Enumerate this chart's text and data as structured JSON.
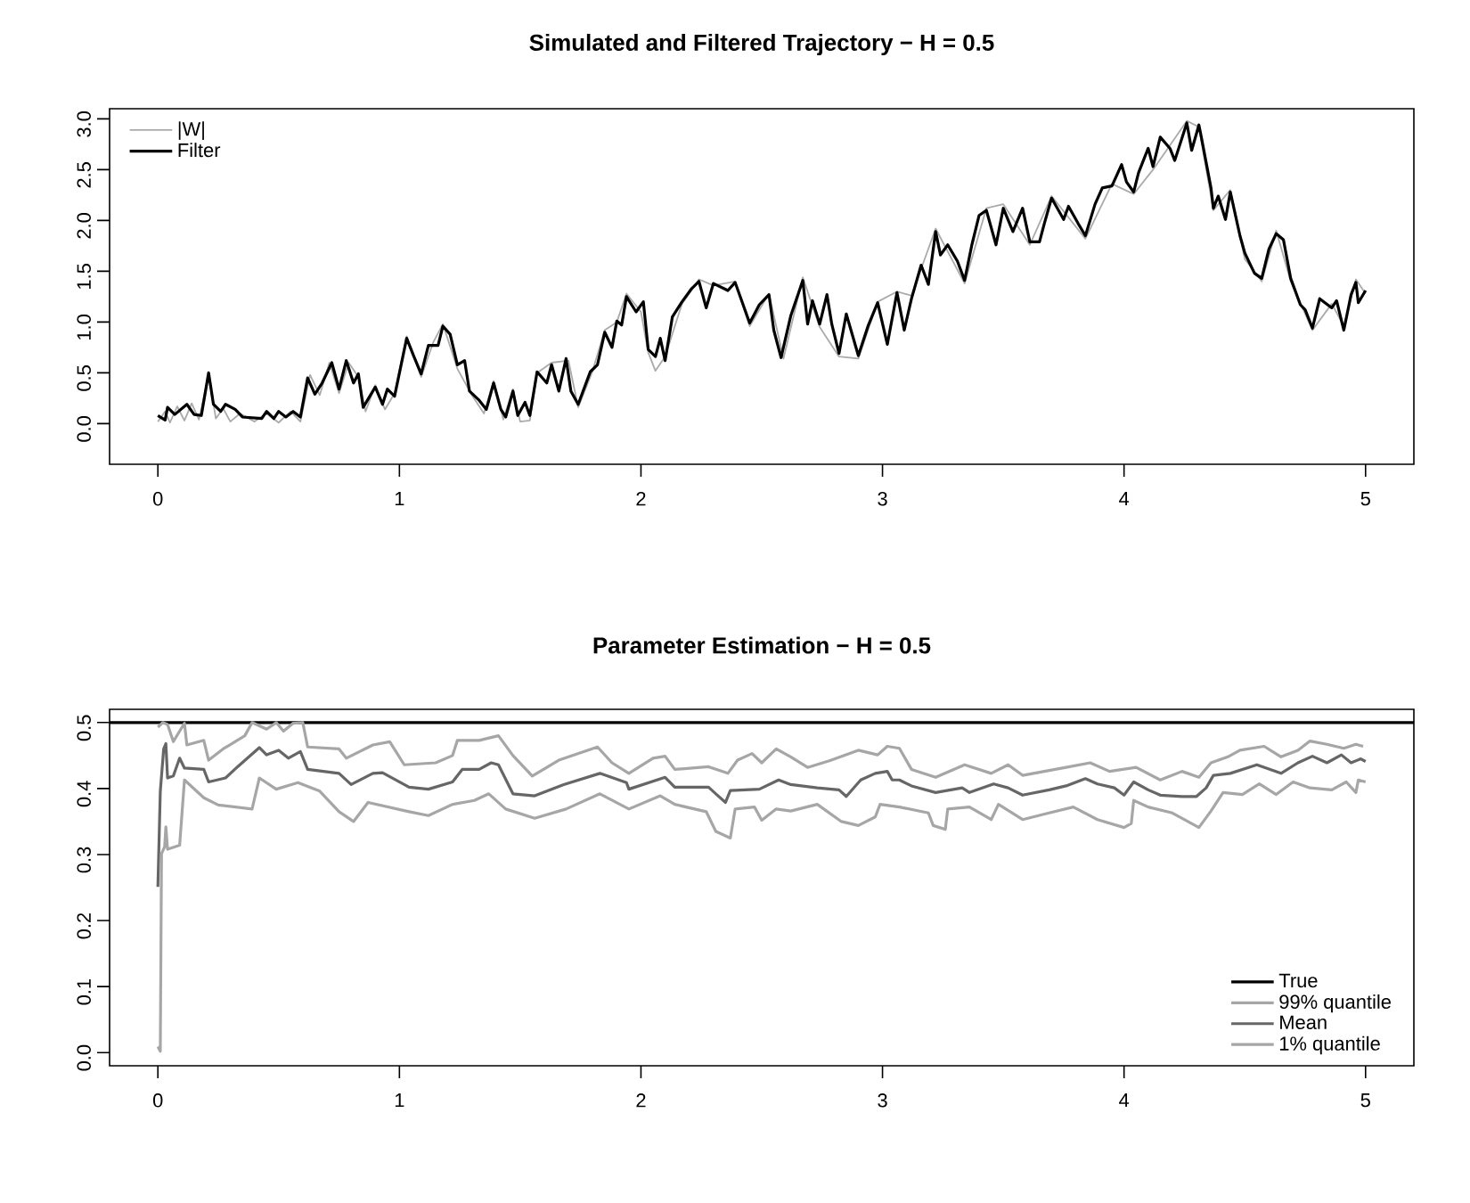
{
  "chart_data": [
    {
      "type": "line",
      "title": "Simulated and Filtered Trajectory − H = 0.5",
      "xlim": [
        -0.2,
        5.2
      ],
      "ylim": [
        -0.4,
        3.1
      ],
      "xticks": [
        0,
        1,
        2,
        3,
        4,
        5
      ],
      "yticks": [
        {
          "value": 0,
          "label": "0.0"
        },
        0.5,
        {
          "value": 1,
          "label": "1.0"
        },
        1.5,
        {
          "value": 2,
          "label": "2.0"
        },
        2.5,
        {
          "value": 3,
          "label": "3.0"
        }
      ],
      "legend": "top left",
      "series": [
        {
          "name": "|W|",
          "color": "#aaaaaa",
          "x": [
            0,
            0.03,
            0.05,
            0.08,
            0.11,
            0.14,
            0.17,
            0.21,
            0.24,
            0.27,
            0.3,
            0.34,
            0.4,
            0.45,
            0.5,
            0.55,
            0.59,
            0.63,
            0.67,
            0.71,
            0.75,
            0.79,
            0.83,
            0.86,
            0.9,
            0.94,
            0.98,
            1.03,
            1.09,
            1.14,
            1.18,
            1.24,
            1.3,
            1.35,
            1.39,
            1.43,
            1.47,
            1.5,
            1.54,
            1.57,
            1.63,
            1.7,
            1.74,
            1.8,
            1.85,
            1.9,
            1.94,
            2.0,
            2.03,
            2.06,
            2.1,
            2.17,
            2.24,
            2.3,
            2.39,
            2.45,
            2.53,
            2.59,
            2.67,
            2.74,
            2.82,
            2.9,
            2.98,
            3.06,
            3.12,
            3.22,
            3.34,
            3.43,
            3.5,
            3.61,
            3.7,
            3.84,
            3.95,
            4.04,
            4.12,
            4.19,
            4.26,
            4.31,
            4.37,
            4.44,
            4.5,
            4.57,
            4.63,
            4.69,
            4.78,
            4.86,
            4.91,
            4.96,
            5.0
          ],
          "values": [
            0.02,
            0.12,
            0.01,
            0.17,
            0.03,
            0.2,
            0.04,
            0.48,
            0.05,
            0.15,
            0.02,
            0.1,
            0.02,
            0.1,
            0.01,
            0.12,
            0.02,
            0.48,
            0.28,
            0.6,
            0.3,
            0.6,
            0.46,
            0.12,
            0.38,
            0.14,
            0.3,
            0.86,
            0.46,
            0.8,
            0.98,
            0.54,
            0.28,
            0.1,
            0.42,
            0.04,
            0.34,
            0.02,
            0.03,
            0.5,
            0.6,
            0.62,
            0.16,
            0.52,
            0.92,
            1.0,
            1.28,
            1.1,
            0.7,
            0.52,
            0.66,
            1.18,
            1.42,
            1.36,
            1.4,
            0.96,
            1.28,
            0.64,
            1.44,
            0.95,
            0.66,
            0.64,
            1.2,
            1.3,
            1.26,
            1.92,
            1.38,
            2.12,
            2.16,
            1.76,
            2.24,
            1.82,
            2.36,
            2.26,
            2.5,
            2.74,
            2.98,
            2.92,
            2.1,
            2.3,
            1.62,
            1.4,
            1.9,
            1.4,
            0.92,
            1.18,
            0.96,
            1.42,
            1.28
          ]
        },
        {
          "name": "Filter",
          "color": "#000000",
          "x": [
            0,
            0.03,
            0.04,
            0.07,
            0.12,
            0.15,
            0.18,
            0.21,
            0.23,
            0.26,
            0.28,
            0.32,
            0.35,
            0.43,
            0.45,
            0.48,
            0.5,
            0.53,
            0.56,
            0.59,
            0.62,
            0.65,
            0.68,
            0.72,
            0.75,
            0.78,
            0.81,
            0.83,
            0.85,
            0.9,
            0.93,
            0.95,
            0.98,
            1.03,
            1.06,
            1.09,
            1.12,
            1.16,
            1.18,
            1.21,
            1.24,
            1.27,
            1.29,
            1.33,
            1.36,
            1.39,
            1.42,
            1.44,
            1.47,
            1.49,
            1.52,
            1.54,
            1.57,
            1.61,
            1.63,
            1.66,
            1.69,
            1.71,
            1.74,
            1.79,
            1.82,
            1.85,
            1.88,
            1.9,
            1.92,
            1.94,
            1.98,
            2.01,
            2.03,
            2.06,
            2.08,
            2.1,
            2.13,
            2.17,
            2.21,
            2.24,
            2.27,
            2.3,
            2.36,
            2.39,
            2.45,
            2.49,
            2.53,
            2.55,
            2.58,
            2.62,
            2.67,
            2.69,
            2.71,
            2.74,
            2.77,
            2.79,
            2.82,
            2.85,
            2.9,
            2.94,
            2.98,
            3.02,
            3.06,
            3.09,
            3.12,
            3.16,
            3.19,
            3.22,
            3.24,
            3.27,
            3.31,
            3.34,
            3.37,
            3.4,
            3.43,
            3.47,
            3.5,
            3.54,
            3.58,
            3.61,
            3.65,
            3.67,
            3.7,
            3.75,
            3.77,
            3.81,
            3.84,
            3.88,
            3.91,
            3.95,
            3.99,
            4.01,
            4.04,
            4.06,
            4.1,
            4.12,
            4.15,
            4.19,
            4.21,
            4.26,
            4.28,
            4.31,
            4.32,
            4.36,
            4.37,
            4.39,
            4.42,
            4.44,
            4.48,
            4.5,
            4.54,
            4.57,
            4.6,
            4.63,
            4.66,
            4.69,
            4.73,
            4.75,
            4.78,
            4.81,
            4.86,
            4.88,
            4.91,
            4.94,
            4.96,
            4.97,
            5.0
          ],
          "values": [
            0.08,
            0.035,
            0.16,
            0.09,
            0.19,
            0.09,
            0.08,
            0.5,
            0.19,
            0.12,
            0.19,
            0.14,
            0.065,
            0.05,
            0.12,
            0.05,
            0.12,
            0.065,
            0.12,
            0.065,
            0.45,
            0.29,
            0.4,
            0.6,
            0.34,
            0.62,
            0.4,
            0.49,
            0.16,
            0.36,
            0.19,
            0.34,
            0.27,
            0.84,
            0.66,
            0.49,
            0.77,
            0.77,
            0.96,
            0.88,
            0.58,
            0.62,
            0.32,
            0.23,
            0.14,
            0.4,
            0.14,
            0.065,
            0.32,
            0.08,
            0.21,
            0.08,
            0.51,
            0.4,
            0.58,
            0.32,
            0.64,
            0.32,
            0.19,
            0.51,
            0.58,
            0.9,
            0.75,
            1.01,
            0.97,
            1.25,
            1.1,
            1.2,
            0.73,
            0.66,
            0.84,
            0.62,
            1.05,
            1.2,
            1.33,
            1.4,
            1.14,
            1.38,
            1.31,
            1.39,
            0.99,
            1.17,
            1.27,
            0.92,
            0.65,
            1.06,
            1.41,
            0.98,
            1.21,
            0.98,
            1.27,
            0.98,
            0.69,
            1.08,
            0.67,
            0.96,
            1.19,
            0.78,
            1.29,
            0.92,
            1.23,
            1.56,
            1.37,
            1.89,
            1.66,
            1.76,
            1.6,
            1.41,
            1.76,
            2.05,
            2.1,
            1.76,
            2.12,
            1.89,
            2.12,
            1.79,
            1.79,
            1.97,
            2.22,
            2.01,
            2.14,
            1.97,
            1.85,
            2.16,
            2.32,
            2.34,
            2.55,
            2.38,
            2.28,
            2.47,
            2.71,
            2.53,
            2.82,
            2.71,
            2.59,
            2.96,
            2.69,
            2.94,
            2.82,
            2.32,
            2.12,
            2.24,
            2.01,
            2.28,
            1.85,
            1.68,
            1.48,
            1.43,
            1.72,
            1.87,
            1.81,
            1.43,
            1.17,
            1.12,
            0.94,
            1.23,
            1.14,
            1.21,
            0.92,
            1.27,
            1.39,
            1.19,
            1.31
          ]
        }
      ]
    },
    {
      "type": "line",
      "title": "Parameter Estimation − H = 0.5",
      "xlim": [
        -0.2,
        5.2
      ],
      "ylim": [
        -0.02,
        0.52
      ],
      "xticks": [
        0,
        1,
        2,
        3,
        4,
        5
      ],
      "yticks": [
        {
          "value": 0,
          "label": "0.0"
        },
        0.1,
        0.2,
        0.3,
        0.4,
        0.5
      ],
      "legend": "bottom right",
      "series": [
        {
          "name": "True",
          "color": "#000000",
          "x": [
            -0.2,
            5.2
          ],
          "values": [
            0.5,
            0.5
          ]
        },
        {
          "name": "99% quantile",
          "color": "#a6a6a6",
          "x": [
            0,
            0.02,
            0.04,
            0.064,
            0.09,
            0.11,
            0.12,
            0.19,
            0.21,
            0.27,
            0.36,
            0.39,
            0.45,
            0.49,
            0.52,
            0.56,
            0.6,
            0.62,
            0.75,
            0.78,
            0.89,
            0.96,
            1.02,
            1.15,
            1.22,
            1.24,
            1.33,
            1.41,
            1.47,
            1.55,
            1.66,
            1.82,
            1.88,
            1.95,
            2.05,
            2.1,
            2.14,
            2.28,
            2.36,
            2.4,
            2.46,
            2.5,
            2.56,
            2.62,
            2.69,
            2.78,
            2.9,
            2.98,
            3.02,
            3.07,
            3.12,
            3.22,
            3.34,
            3.45,
            3.52,
            3.58,
            3.76,
            3.86,
            3.94,
            4.05,
            4.15,
            4.24,
            4.31,
            4.36,
            4.43,
            4.48,
            4.58,
            4.65,
            4.72,
            4.77,
            4.84,
            4.91,
            4.96,
            4.99
          ],
          "values": [
            0.493,
            0.5,
            0.497,
            0.471,
            0.487,
            0.499,
            0.466,
            0.473,
            0.443,
            0.46,
            0.48,
            0.5,
            0.49,
            0.5,
            0.487,
            0.499,
            0.5,
            0.463,
            0.46,
            0.446,
            0.466,
            0.471,
            0.436,
            0.439,
            0.45,
            0.473,
            0.473,
            0.48,
            0.45,
            0.419,
            0.443,
            0.463,
            0.439,
            0.423,
            0.446,
            0.449,
            0.429,
            0.433,
            0.423,
            0.443,
            0.453,
            0.439,
            0.46,
            0.448,
            0.432,
            0.442,
            0.458,
            0.451,
            0.464,
            0.461,
            0.429,
            0.417,
            0.436,
            0.423,
            0.436,
            0.42,
            0.432,
            0.439,
            0.426,
            0.432,
            0.413,
            0.426,
            0.417,
            0.439,
            0.448,
            0.458,
            0.464,
            0.448,
            0.458,
            0.472,
            0.467,
            0.461,
            0.467,
            0.464
          ]
        },
        {
          "name": "Mean",
          "color": "#666666",
          "x": [
            0,
            0.01,
            0.024,
            0.033,
            0.04,
            0.064,
            0.09,
            0.11,
            0.19,
            0.21,
            0.28,
            0.33,
            0.42,
            0.45,
            0.5,
            0.54,
            0.59,
            0.62,
            0.75,
            0.8,
            0.89,
            0.93,
            1.04,
            1.12,
            1.22,
            1.26,
            1.33,
            1.38,
            1.41,
            1.47,
            1.56,
            1.68,
            1.83,
            1.94,
            1.95,
            2.1,
            2.14,
            2.28,
            2.31,
            2.35,
            2.37,
            2.49,
            2.57,
            2.62,
            2.73,
            2.82,
            2.85,
            2.91,
            2.97,
            3.02,
            3.04,
            3.07,
            3.12,
            3.22,
            3.33,
            3.36,
            3.46,
            3.52,
            3.58,
            3.69,
            3.76,
            3.84,
            3.89,
            3.96,
            4.0,
            4.04,
            4.1,
            4.15,
            4.24,
            4.3,
            4.34,
            4.37,
            4.44,
            4.55,
            4.65,
            4.72,
            4.78,
            4.84,
            4.9,
            4.94,
            4.98,
            5.0
          ],
          "values": [
            0.251,
            0.396,
            0.46,
            0.468,
            0.416,
            0.419,
            0.446,
            0.431,
            0.429,
            0.41,
            0.416,
            0.433,
            0.462,
            0.451,
            0.458,
            0.446,
            0.456,
            0.429,
            0.423,
            0.406,
            0.423,
            0.424,
            0.402,
            0.399,
            0.41,
            0.429,
            0.429,
            0.439,
            0.436,
            0.392,
            0.389,
            0.406,
            0.423,
            0.409,
            0.399,
            0.417,
            0.402,
            0.402,
            0.392,
            0.379,
            0.397,
            0.399,
            0.413,
            0.406,
            0.401,
            0.398,
            0.388,
            0.413,
            0.423,
            0.426,
            0.413,
            0.413,
            0.404,
            0.394,
            0.401,
            0.394,
            0.407,
            0.401,
            0.39,
            0.398,
            0.404,
            0.415,
            0.407,
            0.401,
            0.39,
            0.41,
            0.398,
            0.39,
            0.388,
            0.388,
            0.401,
            0.42,
            0.423,
            0.436,
            0.423,
            0.439,
            0.449,
            0.439,
            0.451,
            0.439,
            0.445,
            0.441
          ]
        },
        {
          "name": "1% quantile",
          "color": "#a6a6a6",
          "x": [
            0,
            0.01,
            0.015,
            0.028,
            0.033,
            0.04,
            0.09,
            0.11,
            0.19,
            0.25,
            0.39,
            0.42,
            0.49,
            0.58,
            0.67,
            0.75,
            0.81,
            0.87,
            1.04,
            1.12,
            1.22,
            1.31,
            1.37,
            1.44,
            1.56,
            1.69,
            1.83,
            1.95,
            2.08,
            2.14,
            2.27,
            2.31,
            2.37,
            2.39,
            2.47,
            2.5,
            2.56,
            2.62,
            2.73,
            2.83,
            2.9,
            2.97,
            2.99,
            3.07,
            3.19,
            3.21,
            3.26,
            3.27,
            3.36,
            3.45,
            3.48,
            3.58,
            3.69,
            3.79,
            3.89,
            4.0,
            4.03,
            4.04,
            4.1,
            4.2,
            4.31,
            4.36,
            4.41,
            4.49,
            4.56,
            4.63,
            4.7,
            4.77,
            4.86,
            4.92,
            4.96,
            4.97,
            5.0
          ],
          "values": [
            0.009,
            0.002,
            0.301,
            0.312,
            0.342,
            0.308,
            0.314,
            0.413,
            0.386,
            0.375,
            0.369,
            0.416,
            0.399,
            0.409,
            0.396,
            0.365,
            0.35,
            0.379,
            0.365,
            0.359,
            0.376,
            0.382,
            0.392,
            0.369,
            0.355,
            0.369,
            0.392,
            0.369,
            0.389,
            0.376,
            0.365,
            0.335,
            0.325,
            0.369,
            0.372,
            0.352,
            0.369,
            0.366,
            0.376,
            0.35,
            0.344,
            0.357,
            0.376,
            0.372,
            0.363,
            0.344,
            0.338,
            0.369,
            0.372,
            0.353,
            0.376,
            0.353,
            0.363,
            0.372,
            0.353,
            0.341,
            0.347,
            0.382,
            0.372,
            0.363,
            0.341,
            0.366,
            0.394,
            0.391,
            0.407,
            0.391,
            0.41,
            0.401,
            0.398,
            0.41,
            0.394,
            0.413,
            0.41
          ]
        }
      ]
    }
  ]
}
